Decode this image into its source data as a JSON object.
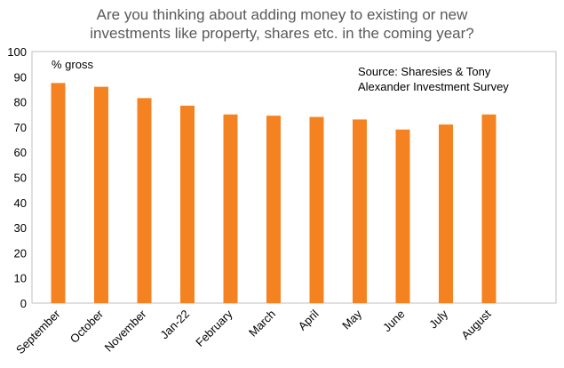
{
  "chart_data": {
    "type": "bar",
    "title": "Are you thinking about adding money to existing or new investments like property, shares etc. in the coming year?",
    "title_lines": [
      "Are you thinking about adding money to existing or new",
      "investments like property, shares etc. in the coming year?"
    ],
    "ylabel": "% gross",
    "xlabel": "",
    "annotation_lines": [
      "Source: Sharesies & Tony",
      "Alexander Investment Survey"
    ],
    "categories": [
      "September",
      "October",
      "November",
      "Jan-22",
      "February",
      "March",
      "April",
      "May",
      "June",
      "July",
      "August"
    ],
    "values": [
      87.5,
      86,
      81.5,
      78.5,
      75,
      74.5,
      74,
      73,
      69,
      71,
      75
    ],
    "ylim": [
      0,
      100
    ],
    "yticks": [
      0,
      10,
      20,
      30,
      40,
      50,
      60,
      70,
      80,
      90,
      100
    ],
    "bar_color": "#F58220",
    "grid": false,
    "legend": "none"
  }
}
